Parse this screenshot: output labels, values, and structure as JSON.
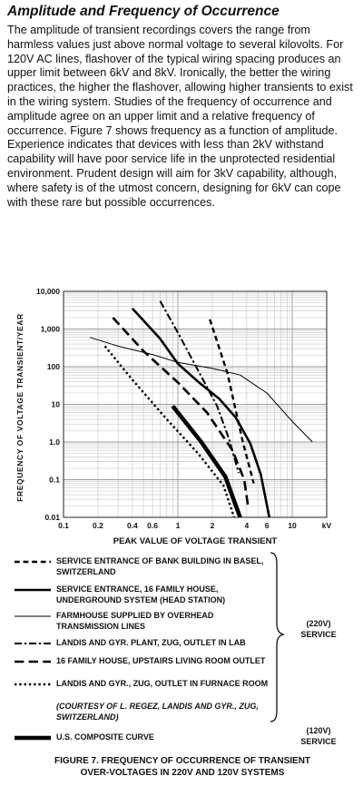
{
  "document": {
    "title": "Amplitude and Frequency of Occurrence",
    "paragraph": "The amplitude of transient recordings covers the range from harmless values just above normal voltage to several kilovolts. For 120V AC lines, flashover of the typical wiring spacing produces an upper limit between 6kV and 8kV. Ironically, the better the wiring practices, the higher the flashover, allowing higher transients to exist in the wiring system. Studies of the frequency of occurrence and amplitude agree on an upper limit and a relative frequency of occurrence. Figure 7 shows frequency as a function of amplitude. Experience indicates that devices with less than 2kV withstand capability will have poor service life in the unprotected residential environment. Prudent design will aim for 3kV capability, although, where safety is of the utmost concern, designing for 6kV can cope with these rare but possible occurrences."
  },
  "figure": {
    "credit": "(COURTESY OF L. REGEZ, LANDIS AND GYR., ZUG, SWITZERLAND)",
    "service_220": [
      "(220V)",
      "SERVICE"
    ],
    "service_120": [
      "(120V)",
      "SERVICE"
    ],
    "caption_line1": "FIGURE 7.  FREQUENCY OF OCCURRENCE OF TRANSIENT",
    "caption_line2": "OVER-VOLTAGES IN 220V AND 120V SYSTEMS"
  },
  "chart_data": {
    "type": "line",
    "xlabel": "PEAK VALUE OF VOLTAGE TRANSIENT",
    "ylabel": "FREQUENCY OF VOLTAGE TRANSIENT/YEAR",
    "x_scale": "log",
    "y_scale": "log",
    "xlim": [
      0.1,
      20
    ],
    "ylim": [
      0.01,
      10000
    ],
    "x_unit_label": "kV",
    "x_ticks": [
      {
        "value": 0.1,
        "label": "0.1"
      },
      {
        "value": 0.2,
        "label": "0.2"
      },
      {
        "value": 0.4,
        "label": "0.4"
      },
      {
        "value": 0.6,
        "label": "0.6"
      },
      {
        "value": 1,
        "label": "1"
      },
      {
        "value": 2,
        "label": "2"
      },
      {
        "value": 4,
        "label": "4"
      },
      {
        "value": 6,
        "label": "6"
      },
      {
        "value": 10,
        "label": "10"
      }
    ],
    "y_ticks": [
      {
        "value": 0.01,
        "label": "0.01"
      },
      {
        "value": 0.1,
        "label": "0.1"
      },
      {
        "value": 1,
        "label": "1.0"
      },
      {
        "value": 10,
        "label": "10"
      },
      {
        "value": 100,
        "label": "100"
      },
      {
        "value": 1000,
        "label": "1,000"
      },
      {
        "value": 10000,
        "label": "10,000"
      }
    ],
    "grid": true,
    "series": [
      {
        "name": "SERVICE ENTRANCE OF BANK BUILDING IN BASEL, SWITZERLAND",
        "style": "short-dash",
        "width": 2.4,
        "group": "220V",
        "points": [
          [
            1.9,
            1800
          ],
          [
            2.7,
            70
          ],
          [
            3.7,
            1.0
          ],
          [
            4.6,
            0.08
          ]
        ]
      },
      {
        "name": "SERVICE ENTRANCE, 16 FAMILY HOUSE, UNDERGROUND SYSTEM (HEAD STATION)",
        "style": "solid",
        "width": 2.6,
        "group": "220V",
        "points": [
          [
            0.4,
            3500
          ],
          [
            0.7,
            550
          ],
          [
            1.0,
            120
          ],
          [
            1.5,
            40
          ],
          [
            2.3,
            14
          ],
          [
            3.2,
            4.5
          ],
          [
            4.3,
            0.9
          ],
          [
            5.3,
            0.14
          ],
          [
            6.3,
            0.01
          ]
        ]
      },
      {
        "name": "FARMHOUSE SUPPLIED BY OVERHEAD TRANSMISSION LINES",
        "style": "solid",
        "width": 1.0,
        "group": "220V",
        "points": [
          [
            0.17,
            600
          ],
          [
            0.3,
            350
          ],
          [
            0.6,
            210
          ],
          [
            1.0,
            130
          ],
          [
            2.0,
            90
          ],
          [
            3.5,
            60
          ],
          [
            6.0,
            20
          ],
          [
            10,
            3.5
          ],
          [
            15,
            1.0
          ]
        ]
      },
      {
        "name": "LANDIS AND GYR. PLANT, ZUG, OUTLET IN LAB",
        "style": "dash-dot",
        "width": 2.0,
        "group": "220V",
        "points": [
          [
            0.7,
            5500
          ],
          [
            1.0,
            800
          ],
          [
            1.5,
            80
          ],
          [
            2.2,
            9
          ],
          [
            2.8,
            1.2
          ],
          [
            3.4,
            0.15
          ]
        ]
      },
      {
        "name": "16 FAMILY HOUSE, UPSTAIRS LIVING ROOM OUTLET",
        "style": "long-dash",
        "width": 2.6,
        "group": "220V",
        "points": [
          [
            0.27,
            2000
          ],
          [
            0.5,
            260
          ],
          [
            1.0,
            38
          ],
          [
            1.8,
            6
          ],
          [
            3.0,
            0.6
          ],
          [
            3.8,
            0.1
          ],
          [
            4.1,
            0.02
          ]
        ]
      },
      {
        "name": "LANDIS AND GYR., ZUG, OUTLET IN FURNACE ROOM",
        "style": "dotted",
        "width": 2.4,
        "group": "220V",
        "points": [
          [
            0.23,
            350
          ],
          [
            0.4,
            45
          ],
          [
            0.8,
            4
          ],
          [
            1.5,
            0.5
          ],
          [
            2.5,
            0.07
          ],
          [
            3.1,
            0.01
          ]
        ]
      },
      {
        "name": "U.S. COMPOSITE CURVE",
        "style": "solid",
        "width": 4.6,
        "group": "120V",
        "points": [
          [
            0.9,
            9
          ],
          [
            1.6,
            1.0
          ],
          [
            2.6,
            0.12
          ],
          [
            3.5,
            0.01
          ]
        ]
      }
    ]
  }
}
